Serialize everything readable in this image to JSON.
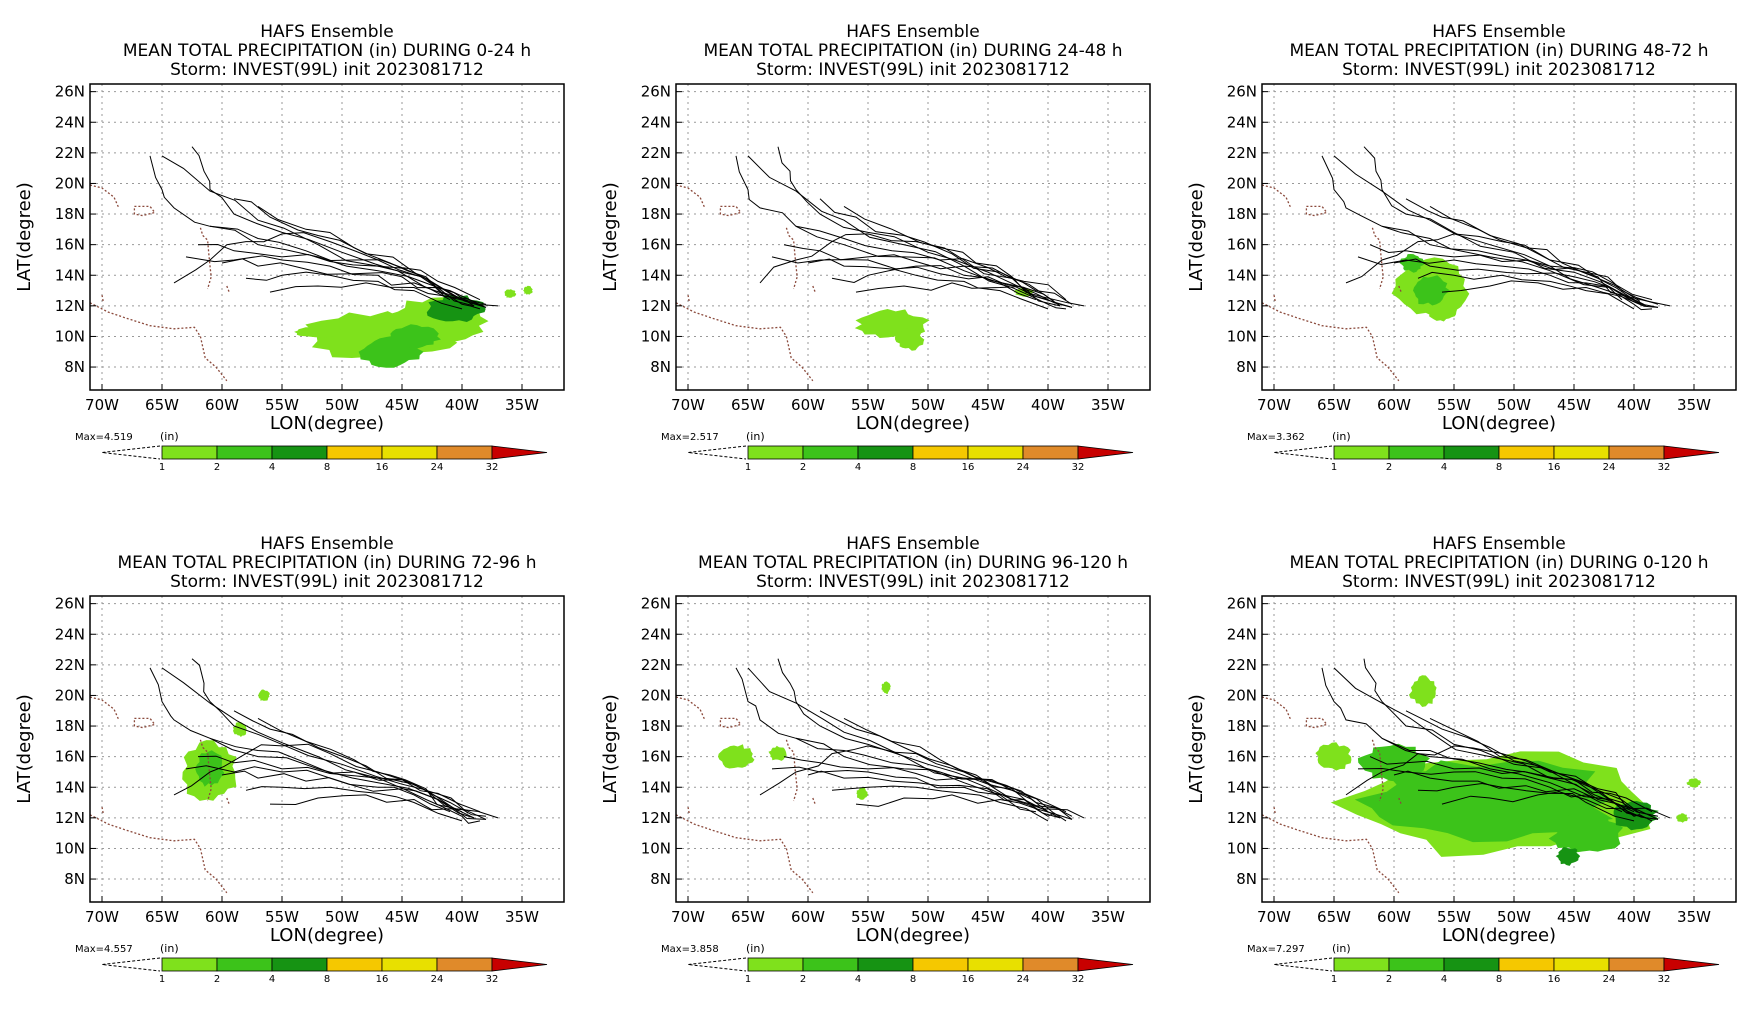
{
  "figure": {
    "panel_title": "HAFS Ensemble",
    "storm_line": "Storm: INVEST(99L) init 2023081712"
  },
  "colorbar": {
    "unit_label": "(in)",
    "colors": [
      "#7fe11c",
      "#3cc31a",
      "#169313",
      "#f5c800",
      "#e8e000",
      "#e08a2a",
      "#c80000"
    ],
    "tick_labels": [
      "1",
      "2",
      "4",
      "8",
      "16",
      "24",
      "32"
    ]
  },
  "axes": {
    "xlabel": "LON(degree)",
    "ylabel": "LAT(degree)",
    "x_tick_labels": [
      "70W",
      "65W",
      "60W",
      "55W",
      "50W",
      "45W",
      "40W",
      "35W"
    ],
    "y_tick_labels": [
      "8N",
      "10N",
      "12N",
      "14N",
      "16N",
      "18N",
      "20N",
      "22N",
      "24N",
      "26N"
    ],
    "xlim": [
      -71,
      -31.5
    ],
    "ylim": [
      6.5,
      26.5
    ],
    "grid": true
  },
  "chart_data": [
    {
      "type": "map",
      "title_line2": "MEAN TOTAL PRECIPITATION (in) DURING  0-24 h",
      "max_label": "Max=4.519",
      "max_value": 4.519
    },
    {
      "type": "map",
      "title_line2": "MEAN TOTAL PRECIPITATION (in) DURING 24-48 h",
      "max_label": "Max=2.517",
      "max_value": 2.517
    },
    {
      "type": "map",
      "title_line2": "MEAN TOTAL PRECIPITATION (in) DURING 48-72 h",
      "max_label": "Max=3.362",
      "max_value": 3.362
    },
    {
      "type": "map",
      "title_line2": "MEAN TOTAL PRECIPITATION (in) DURING 72-96 h",
      "max_label": "Max=4.557",
      "max_value": 4.557
    },
    {
      "type": "map",
      "title_line2": "MEAN TOTAL PRECIPITATION (in) DURING 96-120 h",
      "max_label": "Max=3.858",
      "max_value": 3.858
    },
    {
      "type": "map",
      "title_line2": "MEAN TOTAL PRECIPITATION (in) DURING 0-120 h",
      "max_label": "Max=7.297",
      "max_value": 7.297
    }
  ]
}
